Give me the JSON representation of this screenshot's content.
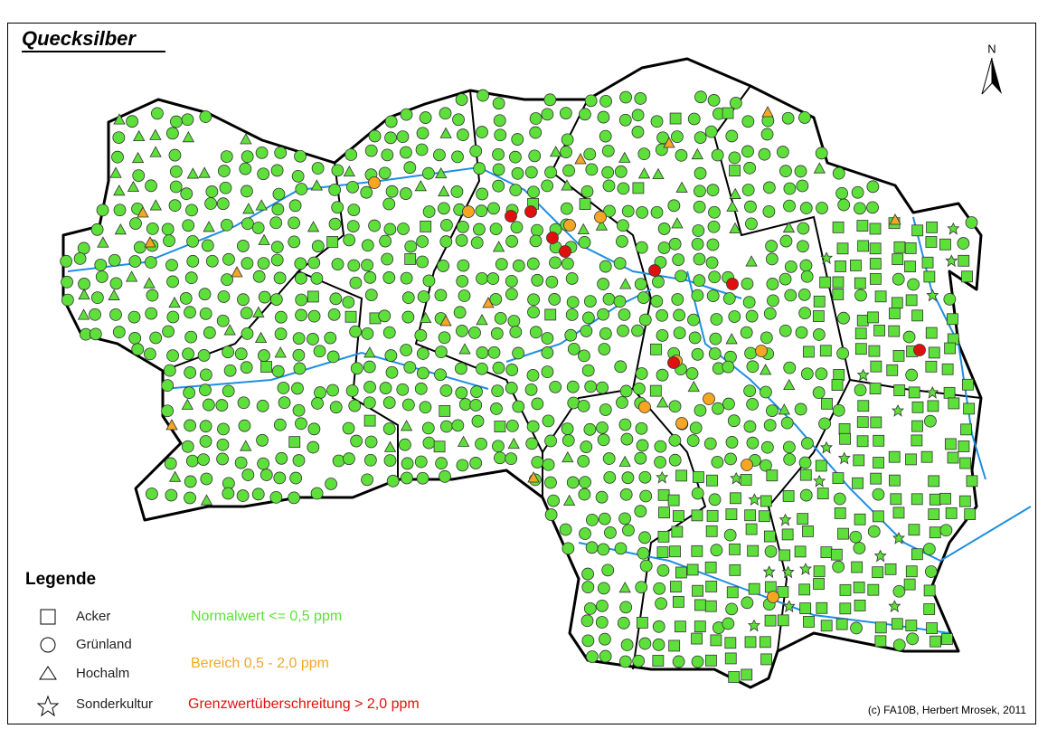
{
  "title": "Quecksilber",
  "north": "N",
  "legend": {
    "title": "Legende",
    "types": [
      "Acker",
      "Grünland",
      "Hochalm",
      "Sonderkultur"
    ],
    "classes": [
      "Normalwert <= 0,5 ppm",
      "Bereich 0,5 - 2,0 ppm",
      "Grenzwertüberschreitung > 2,0 ppm"
    ]
  },
  "credit": "(c) FA10B, Herbert Mrosek, 2011"
}
